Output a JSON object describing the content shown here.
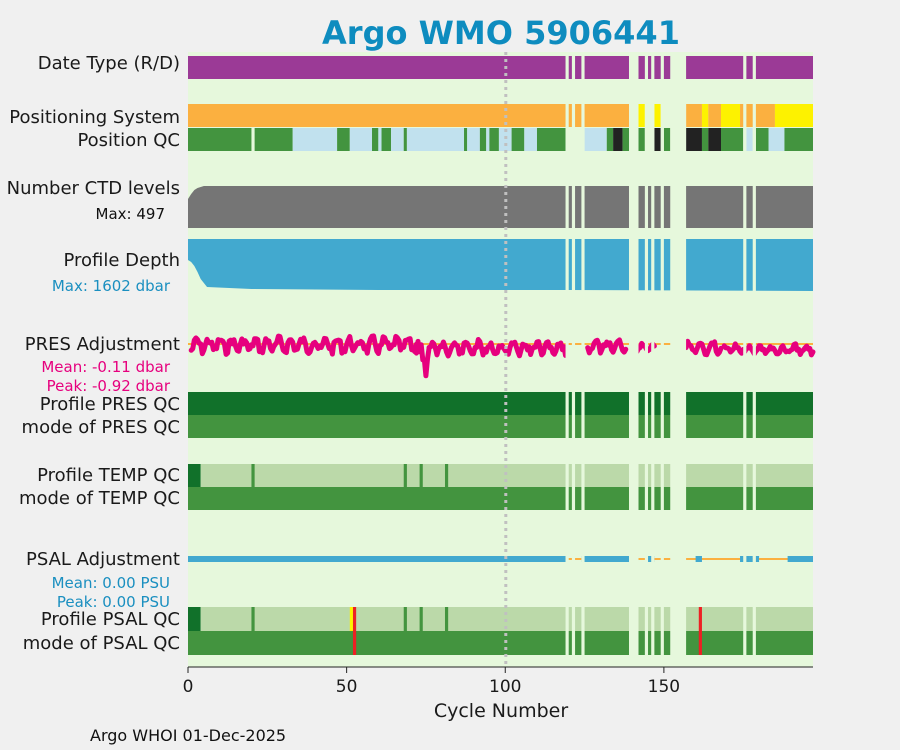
{
  "chart_data": {
    "type": "timeline",
    "title": "Argo WMO 5906441",
    "xlabel": "Cycle Number",
    "xlim": [
      0,
      197
    ],
    "xticks": [
      "0",
      "50",
      "100",
      "150"
    ],
    "xtick_values": [
      0,
      50,
      100,
      150
    ],
    "reference_cycle": 100,
    "missing_cycles": [
      [
        119,
        120
      ],
      [
        121,
        122
      ],
      [
        124,
        125
      ],
      [
        139,
        142
      ],
      [
        144,
        145
      ],
      [
        146,
        147
      ],
      [
        149,
        150
      ],
      [
        152,
        157
      ],
      [
        175,
        176
      ],
      [
        178,
        179
      ]
    ],
    "rows": [
      {
        "name": "Date Type (R/D)",
        "segments": [
          {
            "from": 0,
            "to": 197,
            "color": "#9b3a96"
          }
        ]
      },
      {
        "name": "Positioning System",
        "segments": [
          {
            "from": 0,
            "to": 140,
            "color": "#fbb040"
          },
          {
            "from": 142,
            "to": 144,
            "color": "#fdf200"
          },
          {
            "from": 147,
            "to": 149,
            "color": "#fdf200"
          },
          {
            "from": 157,
            "to": 162,
            "color": "#fbb040"
          },
          {
            "from": 162,
            "to": 164,
            "color": "#fdf200"
          },
          {
            "from": 164,
            "to": 168,
            "color": "#fbb040"
          },
          {
            "from": 168,
            "to": 174,
            "color": "#fdf200"
          },
          {
            "from": 174,
            "to": 185,
            "color": "#fbb040"
          },
          {
            "from": 185,
            "to": 197,
            "color": "#fdf200"
          }
        ]
      },
      {
        "name": "Position QC",
        "segments": [
          {
            "from": 0,
            "to": 20,
            "color": "#43943f"
          },
          {
            "from": 21,
            "to": 33,
            "color": "#43943f"
          },
          {
            "from": 33,
            "to": 47,
            "color": "#c1e1ee"
          },
          {
            "from": 47,
            "to": 51,
            "color": "#43943f"
          },
          {
            "from": 51,
            "to": 58,
            "color": "#c1e1ee"
          },
          {
            "from": 58,
            "to": 60,
            "color": "#43943f"
          },
          {
            "from": 60,
            "to": 61,
            "color": "#c1e1ee"
          },
          {
            "from": 61,
            "to": 64,
            "color": "#43943f"
          },
          {
            "from": 64,
            "to": 68,
            "color": "#c1e1ee"
          },
          {
            "from": 68,
            "to": 69,
            "color": "#43943f"
          },
          {
            "from": 69,
            "to": 87,
            "color": "#c1e1ee"
          },
          {
            "from": 87,
            "to": 88,
            "color": "#43943f"
          },
          {
            "from": 88,
            "to": 92,
            "color": "#c1e1ee"
          },
          {
            "from": 92,
            "to": 94,
            "color": "#43943f"
          },
          {
            "from": 94,
            "to": 95,
            "color": "#c1e1ee"
          },
          {
            "from": 95,
            "to": 98,
            "color": "#43943f"
          },
          {
            "from": 98,
            "to": 102,
            "color": "#c1e1ee"
          },
          {
            "from": 102,
            "to": 106,
            "color": "#43943f"
          },
          {
            "from": 106,
            "to": 110,
            "color": "#c1e1ee"
          },
          {
            "from": 110,
            "to": 119,
            "color": "#43943f"
          },
          {
            "from": 125,
            "to": 132,
            "color": "#c1e1ee"
          },
          {
            "from": 132,
            "to": 134,
            "color": "#43943f"
          },
          {
            "from": 134,
            "to": 137,
            "color": "#222222"
          },
          {
            "from": 137,
            "to": 140,
            "color": "#43943f"
          },
          {
            "from": 142,
            "to": 144,
            "color": "#43943f"
          },
          {
            "from": 147,
            "to": 149,
            "color": "#222222"
          },
          {
            "from": 150,
            "to": 152,
            "color": "#43943f"
          },
          {
            "from": 157,
            "to": 162,
            "color": "#222222"
          },
          {
            "from": 162,
            "to": 164,
            "color": "#43943f"
          },
          {
            "from": 164,
            "to": 168,
            "color": "#222222"
          },
          {
            "from": 168,
            "to": 175,
            "color": "#43943f"
          },
          {
            "from": 176,
            "to": 178,
            "color": "#c1e1ee"
          },
          {
            "from": 179,
            "to": 183,
            "color": "#43943f"
          },
          {
            "from": 183,
            "to": 188,
            "color": "#c1e1ee"
          },
          {
            "from": 188,
            "to": 197,
            "color": "#43943f"
          }
        ]
      },
      {
        "name": "Number CTD levels",
        "max": 497,
        "color": "#757575"
      },
      {
        "name": "Profile Depth",
        "max": 1602,
        "units": "dbar",
        "color": "#42a9cf"
      },
      {
        "name": "PRES Adjustment",
        "mean": -0.11,
        "peak": -0.92,
        "units": "dbar",
        "color": "#e6007e"
      },
      {
        "name": "Profile PRES QC",
        "segments": [
          {
            "from": 0,
            "to": 197,
            "color": "#11712a"
          }
        ]
      },
      {
        "name": "mode of PRES QC",
        "segments": [
          {
            "from": 0,
            "to": 197,
            "color": "#43943f"
          }
        ]
      },
      {
        "name": "Profile TEMP QC",
        "segments": [
          {
            "from": 0,
            "to": 4,
            "color": "#11712a"
          },
          {
            "from": 4,
            "to": 197,
            "color": "#bbd9a9"
          },
          {
            "from": 20,
            "to": 21,
            "color": "#43943f"
          },
          {
            "from": 68,
            "to": 69,
            "color": "#43943f"
          },
          {
            "from": 73,
            "to": 74,
            "color": "#43943f"
          },
          {
            "from": 81,
            "to": 82,
            "color": "#43943f"
          }
        ]
      },
      {
        "name": "mode of TEMP QC",
        "segments": [
          {
            "from": 0,
            "to": 197,
            "color": "#43943f"
          }
        ]
      },
      {
        "name": "PSAL Adjustment",
        "mean": 0.0,
        "peak": 0.0,
        "units": "PSU",
        "color": "#42a9cf"
      },
      {
        "name": "Profile PSAL QC",
        "segments": [
          {
            "from": 0,
            "to": 4,
            "color": "#11712a"
          },
          {
            "from": 4,
            "to": 197,
            "color": "#bbd9a9"
          },
          {
            "from": 20,
            "to": 21,
            "color": "#43943f"
          },
          {
            "from": 51,
            "to": 52,
            "color": "#fdf200"
          },
          {
            "from": 52,
            "to": 53,
            "color": "#ed2024"
          },
          {
            "from": 68,
            "to": 69,
            "color": "#43943f"
          },
          {
            "from": 73,
            "to": 74,
            "color": "#43943f"
          },
          {
            "from": 81,
            "to": 82,
            "color": "#43943f"
          },
          {
            "from": 161,
            "to": 162,
            "color": "#ed2024"
          }
        ]
      },
      {
        "name": "mode of PSAL QC",
        "segments": [
          {
            "from": 0,
            "to": 197,
            "color": "#43943f"
          },
          {
            "from": 52,
            "to": 53,
            "color": "#ed2024"
          },
          {
            "from": 161,
            "to": 162,
            "color": "#ed2024"
          }
        ]
      }
    ]
  },
  "labels": {
    "date_type": "Date Type (R/D)",
    "positioning_system": "Positioning System",
    "position_qc": "Position QC",
    "ctd_levels": "Number CTD levels",
    "ctd_max": "Max: 497",
    "profile_depth": "Profile Depth",
    "depth_max": "Max: 1602 dbar",
    "pres_adjustment": "PRES Adjustment",
    "pres_mean": "Mean: -0.11 dbar",
    "pres_peak": "Peak: -0.92 dbar",
    "profile_pres_qc": "Profile PRES QC",
    "mode_pres_qc": "mode of PRES QC",
    "profile_temp_qc": "Profile TEMP QC",
    "mode_temp_qc": "mode of TEMP QC",
    "psal_adjustment": "PSAL Adjustment",
    "psal_mean": "Mean: 0.00 PSU",
    "psal_peak": "Peak: 0.00 PSU",
    "profile_psal_qc": "Profile PSAL QC",
    "mode_psal_qc": "mode of PSAL QC"
  },
  "footer": "Argo WHOI 01-Dec-2025",
  "colors": {
    "background": "#f0f0f0",
    "plot_bg": "#e6f8dc",
    "title": "#0e8cbf",
    "magenta": "#e6007e",
    "orange_line": "#fbb040"
  }
}
